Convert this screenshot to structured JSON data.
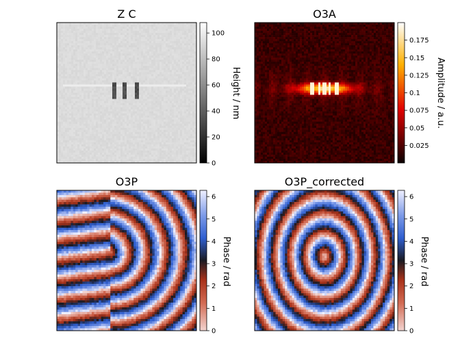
{
  "chart_data": [
    {
      "type": "heatmap",
      "title": "Z C",
      "colormap": "gray",
      "colorbar": {
        "label": "Height / nm",
        "range": [
          0,
          108
        ],
        "ticks": [
          0,
          20,
          40,
          60,
          80,
          100
        ]
      },
      "axes_visible": false,
      "description_values": {
        "background": 90,
        "stripe": 100,
        "feature_min": 45
      }
    },
    {
      "type": "heatmap",
      "title": "O3A",
      "colormap": "hot",
      "colorbar": {
        "label": "Amplitude / a.u.",
        "range": [
          0,
          0.2
        ],
        "ticks": [
          0.025,
          0.05,
          0.075,
          0.1,
          0.125,
          0.15,
          0.175
        ]
      },
      "axes_visible": false,
      "description_values": {
        "background": 0.01,
        "peak": 0.19
      }
    },
    {
      "type": "heatmap",
      "title": "O3P",
      "colormap": "icefire-like",
      "colorbar": {
        "label": "Phase / rad",
        "range": [
          0,
          6.28
        ],
        "ticks": [
          0,
          1,
          2,
          3,
          4,
          5,
          6
        ]
      },
      "axes_visible": false
    },
    {
      "type": "heatmap",
      "title": "O3P_corrected",
      "colormap": "icefire-like",
      "colorbar": {
        "label": "Phase / rad",
        "range": [
          0,
          6.28
        ],
        "ticks": [
          0,
          1,
          2,
          3,
          4,
          5,
          6
        ]
      },
      "axes_visible": false
    }
  ],
  "colors": {
    "frame": "#000000",
    "gray_min": "#000000",
    "gray_max": "#ffffff",
    "phase_low": "#f2d4d0",
    "phase_red": "#a8321a",
    "phase_dark": "#1a1a22",
    "phase_blue": "#2f5fd0",
    "phase_high": "#f0f0ff"
  }
}
